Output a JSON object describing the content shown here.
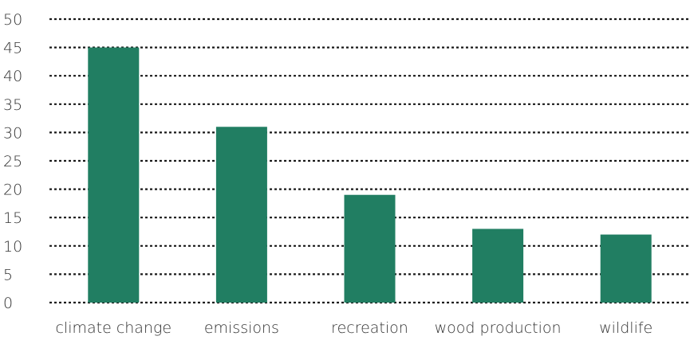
{
  "chart_data": {
    "type": "bar",
    "title": "",
    "xlabel": "",
    "ylabel": "",
    "categories": [
      "climate change",
      "emissions",
      "recreation",
      "wood production",
      "wildlife"
    ],
    "values": [
      45,
      31,
      19,
      13,
      12
    ],
    "ylim": [
      0,
      50
    ],
    "yticks": [
      0,
      5,
      10,
      15,
      20,
      25,
      30,
      35,
      40,
      45,
      50
    ],
    "grid": true,
    "legend": "none",
    "bar_color": "#217e62",
    "grid_color": "#1a1a1a"
  }
}
